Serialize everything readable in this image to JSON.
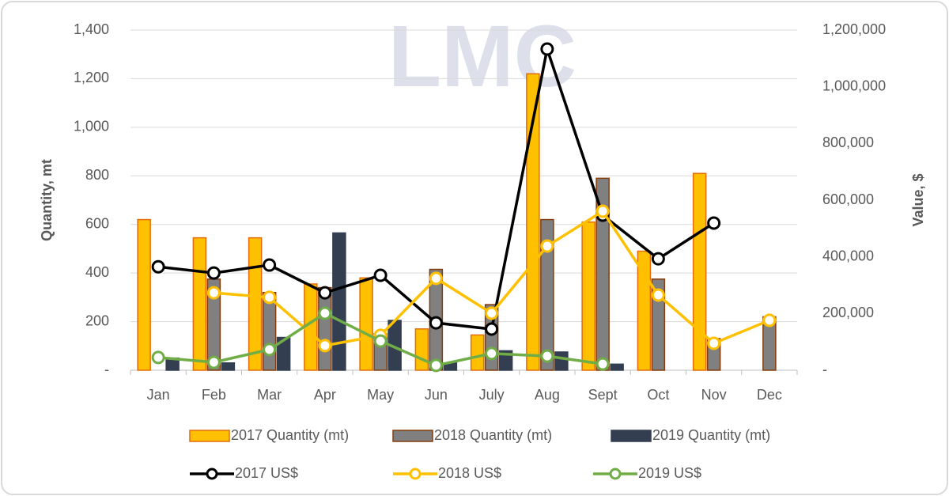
{
  "chart_data": {
    "type": "bar-line",
    "watermark": "LMC",
    "y_label": "Quantity, mt",
    "y2_label": "Value, $",
    "categories": [
      "Jan",
      "Feb",
      "Mar",
      "Apr",
      "May",
      "Jun",
      "July",
      "Aug",
      "Sept",
      "Oct",
      "Nov",
      "Dec"
    ],
    "ylim": [
      0,
      1400
    ],
    "yticks": [
      {
        "value": 0,
        "label": "-"
      },
      200,
      400,
      600,
      800,
      {
        "value": 1000,
        "label": "1,000"
      },
      {
        "value": 1200,
        "label": "1,200"
      },
      {
        "value": 1400,
        "label": "1,400"
      }
    ],
    "y2lim": [
      0,
      1200000
    ],
    "y2ticks": [
      {
        "value": 0,
        "label": "-"
      },
      {
        "value": 200000,
        "label": "200,000"
      },
      {
        "value": 400000,
        "label": "400,000"
      },
      {
        "value": 600000,
        "label": "600,000"
      },
      {
        "value": 800000,
        "label": "800,000"
      },
      {
        "value": 1000000,
        "label": "1,000,000"
      },
      {
        "value": 1200000,
        "label": "1,200,000"
      }
    ],
    "grid": true,
    "series": [
      {
        "name": "2017 Quantity (mt)",
        "type": "bar",
        "color": "#ffc000",
        "edge": "#e46c0a",
        "values": [
          620,
          545,
          545,
          355,
          380,
          170,
          145,
          1220,
          610,
          490,
          810,
          null
        ]
      },
      {
        "name": "2018 Quantity (mt)",
        "type": "bar",
        "color": "#808080",
        "edge": "#843c0c",
        "values": [
          null,
          375,
          320,
          340,
          150,
          415,
          270,
          620,
          790,
          375,
          130,
          220
        ]
      },
      {
        "name": "2019 Quantity (mt)",
        "type": "bar",
        "color": "#333f50",
        "edge": "#333f50",
        "values": [
          50,
          30,
          135,
          565,
          205,
          30,
          80,
          75,
          25,
          null,
          null,
          null
        ]
      },
      {
        "name": "2017 US$",
        "type": "line",
        "axis": "y2",
        "color": "#000000",
        "values": [
          365000,
          343000,
          371000,
          273000,
          335000,
          167000,
          145000,
          1133000,
          547000,
          393000,
          519000,
          null
        ]
      },
      {
        "name": "2018 US$",
        "type": "line",
        "axis": "y2",
        "color": "#ffc000",
        "values": [
          null,
          273000,
          257000,
          87000,
          123000,
          324000,
          201000,
          438000,
          561000,
          265000,
          95000,
          176000
        ]
      },
      {
        "name": "2019 US$",
        "type": "line",
        "axis": "y2",
        "color": "#70ad47",
        "values": [
          45000,
          28000,
          73000,
          201000,
          103000,
          17000,
          59000,
          50000,
          22000,
          null,
          null,
          null
        ]
      }
    ]
  }
}
